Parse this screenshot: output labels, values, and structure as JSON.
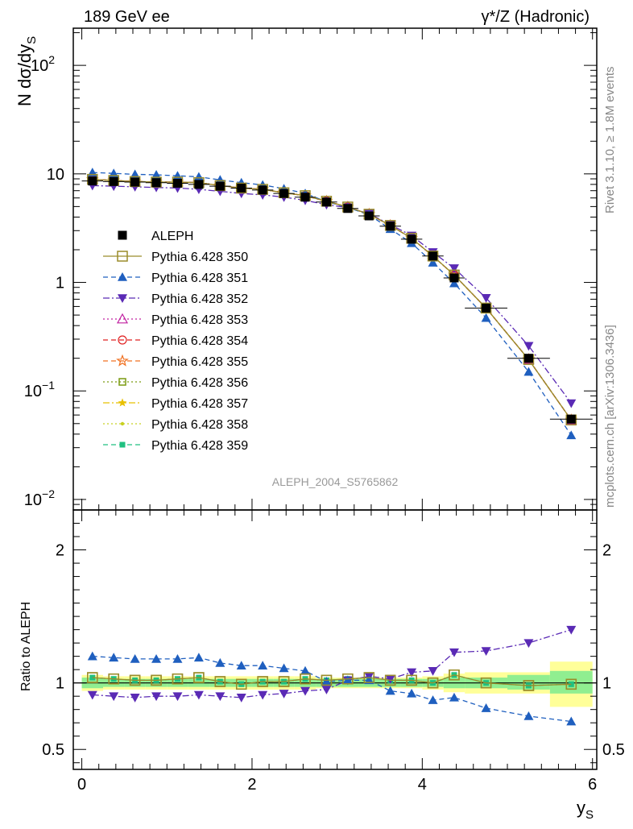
{
  "header": {
    "left": "189 GeV ee",
    "right": "γ*/Z (Hadronic)"
  },
  "side_text": {
    "rivet": "Rivet 3.1.10, ≥ 1.8M events",
    "mcplots": "mcplots.cern.ch [arXiv:1306.3436]"
  },
  "analysis_id": "ALEPH_2004_S5765862",
  "colors": {
    "ALEPH": "#000000",
    "Pythia 6.428 350": "#9a8c2a",
    "Pythia 6.428 351": "#1f5fbf",
    "Pythia 6.428 352": "#5a2ab5",
    "Pythia 6.428 353": "#c020a0",
    "Pythia 6.428 354": "#e02020",
    "Pythia 6.428 355": "#f07020",
    "Pythia 6.428 356": "#7a9a10",
    "Pythia 6.428 357": "#e8c000",
    "Pythia 6.428 358": "#c8d020",
    "Pythia 6.428 359": "#20c080",
    "band_inner": "#90ee90",
    "band_outer": "#ffff99"
  },
  "chart_data": [
    {
      "type": "line",
      "ylabel": "N dσ/dy",
      "ylabel_sub": "S",
      "yscale": "log",
      "xlim": [
        -0.1,
        6.05
      ],
      "ylim": [
        0.008,
        220
      ],
      "y_ticks": [
        {
          "value": 0.01,
          "base": "10",
          "exp": "−2"
        },
        {
          "value": 0.1,
          "base": "10",
          "exp": "−1"
        },
        {
          "value": 1,
          "base": "1",
          "exp": ""
        },
        {
          "value": 10,
          "base": "10",
          "exp": ""
        },
        {
          "value": 100,
          "base": "10",
          "exp": "2"
        }
      ],
      "x": [
        0.125,
        0.375,
        0.625,
        0.875,
        1.125,
        1.375,
        1.625,
        1.875,
        2.125,
        2.375,
        2.625,
        2.875,
        3.125,
        3.375,
        3.625,
        3.875,
        4.125,
        4.375,
        4.75,
        5.25,
        5.75
      ],
      "x_err": [
        0.125,
        0.125,
        0.125,
        0.125,
        0.125,
        0.125,
        0.125,
        0.125,
        0.125,
        0.125,
        0.125,
        0.125,
        0.125,
        0.125,
        0.125,
        0.125,
        0.125,
        0.125,
        0.25,
        0.25,
        0.25
      ],
      "series": [
        {
          "name": "ALEPH",
          "style": "data",
          "marker": "square-filled",
          "values": [
            8.6,
            8.5,
            8.4,
            8.3,
            8.2,
            8.0,
            7.7,
            7.4,
            7.1,
            6.6,
            6.1,
            5.5,
            4.8,
            4.1,
            3.3,
            2.5,
            1.75,
            1.1,
            0.58,
            0.2,
            0.055
          ]
        },
        {
          "name": "Pythia 6.428 350",
          "style": "solid",
          "marker": "square-open",
          "values": [
            8.9,
            8.7,
            8.5,
            8.4,
            8.4,
            8.3,
            7.8,
            7.4,
            7.2,
            6.7,
            6.3,
            5.6,
            4.95,
            4.25,
            3.35,
            2.55,
            1.75,
            1.17,
            0.58,
            0.195,
            0.054
          ]
        },
        {
          "name": "Pythia 6.428 351",
          "style": "dash",
          "marker": "triangle-up-filled",
          "values": [
            10.3,
            10.1,
            9.9,
            9.8,
            9.6,
            9.4,
            8.8,
            8.3,
            7.9,
            7.3,
            6.6,
            5.55,
            4.9,
            4.2,
            3.1,
            2.3,
            1.52,
            0.98,
            0.47,
            0.15,
            0.039
          ]
        },
        {
          "name": "Pythia 6.428 352",
          "style": "dashdot",
          "marker": "triangle-down-filled",
          "values": [
            7.8,
            7.7,
            7.6,
            7.5,
            7.4,
            7.2,
            6.9,
            6.6,
            6.4,
            6.1,
            5.7,
            5.2,
            4.9,
            4.3,
            3.4,
            2.7,
            1.9,
            1.35,
            0.72,
            0.26,
            0.077
          ]
        },
        {
          "name": "Pythia 6.428 353",
          "style": "dot",
          "marker": "triangle-up-open",
          "values": [
            8.9,
            8.7,
            8.5,
            8.4,
            8.4,
            8.3,
            7.8,
            7.4,
            7.2,
            6.7,
            6.3,
            5.6,
            4.95,
            4.25,
            3.35,
            2.55,
            1.75,
            1.17,
            0.58,
            0.195,
            0.054
          ]
        },
        {
          "name": "Pythia 6.428 354",
          "style": "dash",
          "marker": "circle-open",
          "values": [
            8.9,
            8.7,
            8.5,
            8.4,
            8.4,
            8.3,
            7.8,
            7.4,
            7.2,
            6.7,
            6.3,
            5.6,
            4.95,
            4.25,
            3.35,
            2.55,
            1.75,
            1.17,
            0.58,
            0.195,
            0.054
          ]
        },
        {
          "name": "Pythia 6.428 355",
          "style": "dash",
          "marker": "star-open",
          "values": [
            8.9,
            8.7,
            8.5,
            8.4,
            8.4,
            8.3,
            7.8,
            7.4,
            7.2,
            6.7,
            6.3,
            5.6,
            4.95,
            4.25,
            3.35,
            2.55,
            1.75,
            1.17,
            0.58,
            0.195,
            0.054
          ]
        },
        {
          "name": "Pythia 6.428 356",
          "style": "dot",
          "marker": "square-open-small",
          "values": [
            8.9,
            8.7,
            8.5,
            8.4,
            8.4,
            8.3,
            7.8,
            7.4,
            7.2,
            6.7,
            6.3,
            5.6,
            4.95,
            4.25,
            3.35,
            2.55,
            1.75,
            1.17,
            0.58,
            0.195,
            0.054
          ]
        },
        {
          "name": "Pythia 6.428 357",
          "style": "dashdot",
          "marker": "star-small",
          "values": [
            8.9,
            8.7,
            8.5,
            8.4,
            8.4,
            8.3,
            7.8,
            7.4,
            7.2,
            6.7,
            6.3,
            5.6,
            4.95,
            4.25,
            3.35,
            2.55,
            1.75,
            1.17,
            0.58,
            0.195,
            0.054
          ]
        },
        {
          "name": "Pythia 6.428 358",
          "style": "dot",
          "marker": "dot-small",
          "values": [
            8.9,
            8.7,
            8.5,
            8.4,
            8.4,
            8.3,
            7.8,
            7.4,
            7.2,
            6.7,
            6.3,
            5.6,
            4.95,
            4.25,
            3.35,
            2.55,
            1.75,
            1.17,
            0.58,
            0.195,
            0.054
          ]
        },
        {
          "name": "Pythia 6.428 359",
          "style": "dash",
          "marker": "square-filled-small",
          "values": [
            8.9,
            8.7,
            8.5,
            8.4,
            8.4,
            8.3,
            7.8,
            7.4,
            7.2,
            6.7,
            6.3,
            5.6,
            4.95,
            4.25,
            3.35,
            2.55,
            1.75,
            1.17,
            0.58,
            0.195,
            0.054
          ]
        }
      ]
    },
    {
      "type": "line",
      "ylabel": "Ratio to ALEPH",
      "xlabel": "y",
      "xlabel_sub": "S",
      "xlim": [
        -0.1,
        6.05
      ],
      "ylim": [
        0.35,
        2.3
      ],
      "x_ticks": [
        "0",
        "2",
        "4",
        "6"
      ],
      "y_ticks": [
        "0.5",
        "1",
        "2"
      ],
      "band_inner": [
        [
          0.96,
          1.04
        ],
        [
          0.97,
          1.03
        ],
        [
          0.97,
          1.03
        ],
        [
          0.97,
          1.03
        ],
        [
          0.97,
          1.03
        ],
        [
          0.97,
          1.03
        ],
        [
          0.97,
          1.03
        ],
        [
          0.97,
          1.03
        ],
        [
          0.97,
          1.03
        ],
        [
          0.97,
          1.03
        ],
        [
          0.97,
          1.03
        ],
        [
          0.97,
          1.03
        ],
        [
          0.97,
          1.03
        ],
        [
          0.97,
          1.03
        ],
        [
          0.97,
          1.03
        ],
        [
          0.97,
          1.03
        ],
        [
          0.97,
          1.03
        ],
        [
          0.96,
          1.04
        ],
        [
          0.96,
          1.04
        ],
        [
          0.95,
          1.06
        ],
        [
          0.92,
          1.09
        ]
      ],
      "band_outer": [
        [
          0.94,
          1.06
        ],
        [
          0.95,
          1.05
        ],
        [
          0.95,
          1.05
        ],
        [
          0.95,
          1.05
        ],
        [
          0.95,
          1.05
        ],
        [
          0.95,
          1.05
        ],
        [
          0.95,
          1.05
        ],
        [
          0.95,
          1.05
        ],
        [
          0.95,
          1.05
        ],
        [
          0.95,
          1.05
        ],
        [
          0.95,
          1.05
        ],
        [
          0.96,
          1.04
        ],
        [
          0.96,
          1.04
        ],
        [
          0.96,
          1.04
        ],
        [
          0.96,
          1.04
        ],
        [
          0.96,
          1.04
        ],
        [
          0.95,
          1.05
        ],
        [
          0.93,
          1.07
        ],
        [
          0.92,
          1.08
        ],
        [
          0.92,
          1.08
        ],
        [
          0.82,
          1.16
        ]
      ],
      "series": [
        {
          "name": "Pythia 6.428 350",
          "values": [
            1.04,
            1.03,
            1.02,
            1.02,
            1.03,
            1.04,
            1.01,
            0.99,
            1.01,
            1.01,
            1.03,
            1.02,
            1.03,
            1.04,
            1.02,
            1.02,
            1.0,
            1.06,
            1.0,
            0.98,
            0.99
          ]
        },
        {
          "name": "Pythia 6.428 351",
          "values": [
            1.2,
            1.19,
            1.18,
            1.18,
            1.18,
            1.19,
            1.15,
            1.13,
            1.13,
            1.11,
            1.09,
            1.01,
            1.02,
            1.02,
            0.94,
            0.92,
            0.87,
            0.89,
            0.81,
            0.75,
            0.71
          ]
        },
        {
          "name": "Pythia 6.428 352",
          "values": [
            0.91,
            0.9,
            0.89,
            0.9,
            0.9,
            0.91,
            0.9,
            0.89,
            0.91,
            0.92,
            0.94,
            0.95,
            1.02,
            1.05,
            1.03,
            1.08,
            1.09,
            1.23,
            1.24,
            1.3,
            1.4
          ]
        },
        {
          "name": "Pythia 6.428 359",
          "values": [
            1.04,
            1.03,
            1.02,
            1.02,
            1.03,
            1.04,
            1.01,
            0.99,
            1.01,
            1.01,
            1.03,
            1.02,
            1.03,
            1.04,
            1.02,
            1.02,
            1.0,
            1.06,
            1.0,
            0.98,
            0.99
          ]
        }
      ]
    }
  ]
}
